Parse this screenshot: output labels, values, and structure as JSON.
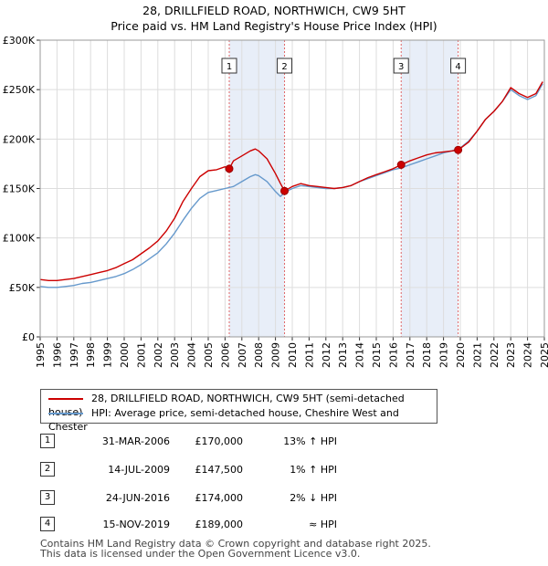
{
  "title": {
    "line1": "28, DRILLFIELD ROAD, NORTHWICH, CW9 5HT",
    "line2": "Price paid vs. HM Land Registry's House Price Index (HPI)"
  },
  "colors": {
    "property": "#cc0000",
    "hpi": "#6699cc",
    "shade": "#e8eef8",
    "marker_line": "#e06666"
  },
  "legend": {
    "property_label": "28, DRILLFIELD ROAD, NORTHWICH, CW9 5HT (semi-detached house)",
    "hpi_label": "HPI: Average price, semi-detached house, Cheshire West and Chester"
  },
  "transactions": [
    {
      "num": "1",
      "date": "31-MAR-2006",
      "price": "£170,000",
      "hpi": "13% ↑ HPI"
    },
    {
      "num": "2",
      "date": "14-JUL-2009",
      "price": "£147,500",
      "hpi": "1% ↑ HPI"
    },
    {
      "num": "3",
      "date": "24-JUN-2016",
      "price": "£174,000",
      "hpi": "2% ↓ HPI"
    },
    {
      "num": "4",
      "date": "15-NOV-2019",
      "price": "£189,000",
      "hpi": "≈ HPI"
    }
  ],
  "footer": {
    "line1": "Contains HM Land Registry data © Crown copyright and database right 2025.",
    "line2": "This data is licensed under the Open Government Licence v3.0."
  },
  "chart_data": {
    "type": "line",
    "title": "28, DRILLFIELD ROAD, NORTHWICH, CW9 5HT — Price paid vs. HM Land Registry's House Price Index (HPI)",
    "xlabel": "",
    "ylabel": "",
    "xlim": [
      1995,
      2025
    ],
    "ylim": [
      0,
      300000
    ],
    "y_ticks": [
      {
        "value": 0,
        "label": "£0"
      },
      {
        "value": 50000,
        "label": "£50K"
      },
      {
        "value": 100000,
        "label": "£100K"
      },
      {
        "value": 150000,
        "label": "£150K"
      },
      {
        "value": 200000,
        "label": "£200K"
      },
      {
        "value": 250000,
        "label": "£250K"
      },
      {
        "value": 300000,
        "label": "£300K"
      }
    ],
    "x_ticks": [
      "1995",
      "1996",
      "1997",
      "1998",
      "1999",
      "2000",
      "2001",
      "2002",
      "2003",
      "2004",
      "2005",
      "2006",
      "2007",
      "2008",
      "2009",
      "2010",
      "2011",
      "2012",
      "2013",
      "2014",
      "2015",
      "2016",
      "2017",
      "2018",
      "2019",
      "2020",
      "2021",
      "2022",
      "2023",
      "2024",
      "2025"
    ],
    "grid": true,
    "shaded_ranges": [
      [
        2006.25,
        2009.54
      ],
      [
        2016.48,
        2019.87
      ]
    ],
    "series": [
      {
        "name": "28, DRILLFIELD ROAD, NORTHWICH, CW9 5HT (semi-detached house)",
        "color": "#cc0000",
        "x": [
          1995.0,
          1995.5,
          1996.0,
          1996.5,
          1997.0,
          1997.5,
          1998.0,
          1998.5,
          1999.0,
          1999.5,
          2000.0,
          2000.5,
          2001.0,
          2001.5,
          2002.0,
          2002.5,
          2003.0,
          2003.5,
          2004.0,
          2004.5,
          2005.0,
          2005.5,
          2006.0,
          2006.25,
          2006.5,
          2007.0,
          2007.5,
          2007.8,
          2008.0,
          2008.5,
          2009.0,
          2009.3,
          2009.54,
          2010.0,
          2010.5,
          2011.0,
          2011.5,
          2012.0,
          2012.5,
          2013.0,
          2013.5,
          2014.0,
          2014.5,
          2015.0,
          2015.5,
          2016.0,
          2016.48,
          2017.0,
          2017.5,
          2018.0,
          2018.5,
          2019.0,
          2019.5,
          2019.87,
          2020.5,
          2021.0,
          2021.5,
          2022.0,
          2022.5,
          2023.0,
          2023.5,
          2024.0,
          2024.5,
          2024.9
        ],
        "values": [
          58000,
          57000,
          57000,
          58000,
          59000,
          61000,
          63000,
          65000,
          67000,
          70000,
          74000,
          78000,
          84000,
          90000,
          97000,
          107000,
          120000,
          137000,
          150000,
          162000,
          168000,
          169000,
          172000,
          170000,
          178000,
          183000,
          188000,
          190000,
          188000,
          180000,
          165000,
          155000,
          147500,
          152000,
          155000,
          153000,
          152000,
          151000,
          150000,
          151000,
          153000,
          157000,
          161000,
          164000,
          167000,
          170000,
          174000,
          178000,
          181000,
          184000,
          186000,
          187000,
          188000,
          189000,
          197000,
          208000,
          220000,
          228000,
          238000,
          252000,
          246000,
          242000,
          246000,
          258000
        ]
      },
      {
        "name": "HPI: Average price, semi-detached house, Cheshire West and Chester",
        "color": "#6699cc",
        "x": [
          1995.0,
          1995.5,
          1996.0,
          1996.5,
          1997.0,
          1997.5,
          1998.0,
          1998.5,
          1999.0,
          1999.5,
          2000.0,
          2000.5,
          2001.0,
          2001.5,
          2002.0,
          2002.5,
          2003.0,
          2003.5,
          2004.0,
          2004.5,
          2005.0,
          2005.5,
          2006.0,
          2006.5,
          2007.0,
          2007.5,
          2007.8,
          2008.0,
          2008.5,
          2009.0,
          2009.3,
          2009.54,
          2010.0,
          2010.5,
          2011.0,
          2011.5,
          2012.0,
          2012.5,
          2013.0,
          2013.5,
          2014.0,
          2014.5,
          2015.0,
          2015.5,
          2016.0,
          2016.5,
          2017.0,
          2017.5,
          2018.0,
          2018.5,
          2019.0,
          2019.5,
          2020.0,
          2020.5,
          2021.0,
          2021.5,
          2022.0,
          2022.5,
          2023.0,
          2023.5,
          2024.0,
          2024.5,
          2024.9
        ],
        "values": [
          51000,
          50000,
          50000,
          51000,
          52000,
          54000,
          55000,
          57000,
          59000,
          61000,
          64000,
          68000,
          73000,
          79000,
          85000,
          94000,
          105000,
          118000,
          130000,
          140000,
          146000,
          148000,
          150000,
          152000,
          157000,
          162000,
          164000,
          163000,
          157000,
          147000,
          142000,
          146000,
          150000,
          153000,
          152000,
          151000,
          150000,
          150000,
          151000,
          153000,
          157000,
          160000,
          163000,
          166000,
          169000,
          171000,
          174000,
          177000,
          180000,
          183000,
          186000,
          188000,
          191000,
          198000,
          208000,
          220000,
          228000,
          238000,
          250000,
          244000,
          240000,
          244000,
          256000
        ]
      }
    ],
    "sale_markers": [
      {
        "num": "1",
        "x": 2006.25,
        "value": 170000
      },
      {
        "num": "2",
        "x": 2009.54,
        "value": 147500
      },
      {
        "num": "3",
        "x": 2016.48,
        "value": 174000
      },
      {
        "num": "4",
        "x": 2019.87,
        "value": 189000
      }
    ]
  }
}
